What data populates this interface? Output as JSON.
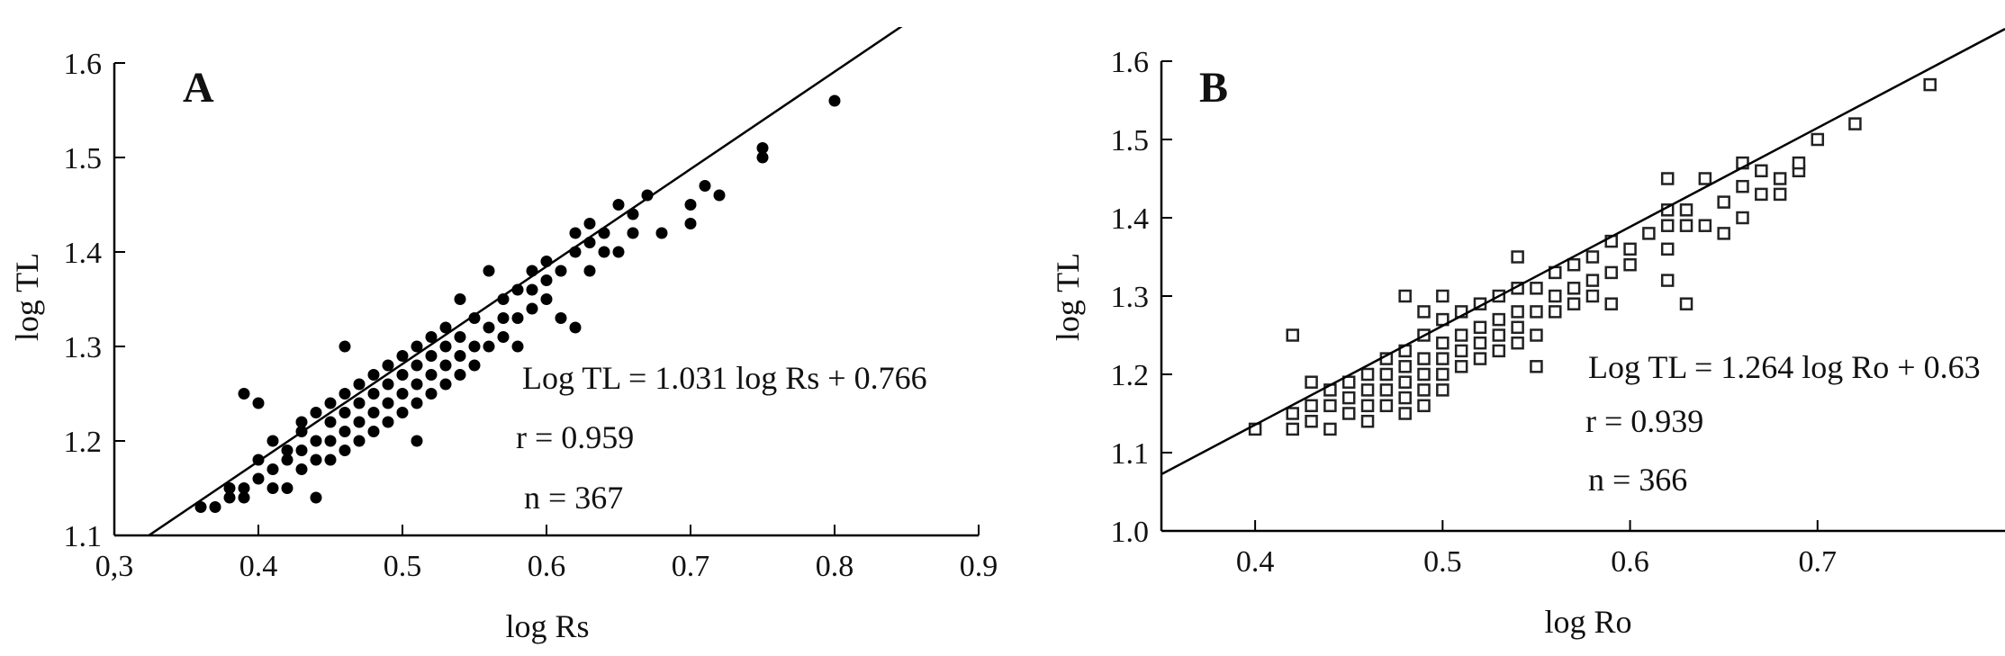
{
  "chart_data": [
    {
      "type": "scatter",
      "panel": "A",
      "xlabel": "log Rs",
      "ylabel": "log TL",
      "xlim": [
        0.3,
        0.9
      ],
      "ylim": [
        1.1,
        1.6
      ],
      "x_ticks": [
        "0,3",
        "0.4",
        "0.5",
        "0.6",
        "0.7",
        "0.8",
        "0.9"
      ],
      "y_ticks": [
        "1.1",
        "1.2",
        "1.3",
        "1.4",
        "1.5",
        "1.6"
      ],
      "marker": "filled-circle",
      "regression": {
        "slope": 1.031,
        "intercept": 0.766
      },
      "annotations": [
        "Log TL = 1.031 log Rs + 0.766",
        "r = 0.959",
        "n = 367"
      ],
      "points": [
        [
          0.36,
          1.13
        ],
        [
          0.37,
          1.13
        ],
        [
          0.38,
          1.14
        ],
        [
          0.38,
          1.15
        ],
        [
          0.39,
          1.15
        ],
        [
          0.39,
          1.14
        ],
        [
          0.4,
          1.16
        ],
        [
          0.4,
          1.18
        ],
        [
          0.39,
          1.25
        ],
        [
          0.4,
          1.24
        ],
        [
          0.41,
          1.15
        ],
        [
          0.41,
          1.17
        ],
        [
          0.41,
          1.2
        ],
        [
          0.42,
          1.15
        ],
        [
          0.42,
          1.18
        ],
        [
          0.42,
          1.19
        ],
        [
          0.43,
          1.17
        ],
        [
          0.43,
          1.19
        ],
        [
          0.43,
          1.21
        ],
        [
          0.43,
          1.22
        ],
        [
          0.44,
          1.14
        ],
        [
          0.44,
          1.18
        ],
        [
          0.44,
          1.2
        ],
        [
          0.44,
          1.23
        ],
        [
          0.45,
          1.18
        ],
        [
          0.45,
          1.2
        ],
        [
          0.45,
          1.22
        ],
        [
          0.45,
          1.24
        ],
        [
          0.46,
          1.19
        ],
        [
          0.46,
          1.21
        ],
        [
          0.46,
          1.23
        ],
        [
          0.46,
          1.25
        ],
        [
          0.46,
          1.3
        ],
        [
          0.47,
          1.2
        ],
        [
          0.47,
          1.22
        ],
        [
          0.47,
          1.24
        ],
        [
          0.47,
          1.26
        ],
        [
          0.48,
          1.21
        ],
        [
          0.48,
          1.23
        ],
        [
          0.48,
          1.25
        ],
        [
          0.48,
          1.27
        ],
        [
          0.49,
          1.22
        ],
        [
          0.49,
          1.24
        ],
        [
          0.49,
          1.26
        ],
        [
          0.49,
          1.28
        ],
        [
          0.5,
          1.23
        ],
        [
          0.5,
          1.25
        ],
        [
          0.5,
          1.27
        ],
        [
          0.5,
          1.29
        ],
        [
          0.51,
          1.24
        ],
        [
          0.51,
          1.26
        ],
        [
          0.51,
          1.28
        ],
        [
          0.51,
          1.3
        ],
        [
          0.51,
          1.2
        ],
        [
          0.52,
          1.25
        ],
        [
          0.52,
          1.27
        ],
        [
          0.52,
          1.29
        ],
        [
          0.52,
          1.31
        ],
        [
          0.53,
          1.26
        ],
        [
          0.53,
          1.28
        ],
        [
          0.53,
          1.3
        ],
        [
          0.53,
          1.32
        ],
        [
          0.54,
          1.27
        ],
        [
          0.54,
          1.29
        ],
        [
          0.54,
          1.31
        ],
        [
          0.54,
          1.35
        ],
        [
          0.55,
          1.28
        ],
        [
          0.55,
          1.3
        ],
        [
          0.55,
          1.33
        ],
        [
          0.56,
          1.3
        ],
        [
          0.56,
          1.32
        ],
        [
          0.56,
          1.38
        ],
        [
          0.57,
          1.31
        ],
        [
          0.57,
          1.33
        ],
        [
          0.57,
          1.35
        ],
        [
          0.58,
          1.3
        ],
        [
          0.58,
          1.33
        ],
        [
          0.58,
          1.36
        ],
        [
          0.59,
          1.34
        ],
        [
          0.59,
          1.36
        ],
        [
          0.59,
          1.38
        ],
        [
          0.6,
          1.35
        ],
        [
          0.6,
          1.37
        ],
        [
          0.6,
          1.39
        ],
        [
          0.61,
          1.33
        ],
        [
          0.61,
          1.38
        ],
        [
          0.62,
          1.32
        ],
        [
          0.62,
          1.4
        ],
        [
          0.62,
          1.42
        ],
        [
          0.63,
          1.38
        ],
        [
          0.63,
          1.41
        ],
        [
          0.63,
          1.43
        ],
        [
          0.64,
          1.4
        ],
        [
          0.64,
          1.42
        ],
        [
          0.65,
          1.4
        ],
        [
          0.65,
          1.45
        ],
        [
          0.66,
          1.42
        ],
        [
          0.66,
          1.44
        ],
        [
          0.67,
          1.46
        ],
        [
          0.68,
          1.42
        ],
        [
          0.7,
          1.43
        ],
        [
          0.7,
          1.45
        ],
        [
          0.71,
          1.47
        ],
        [
          0.72,
          1.46
        ],
        [
          0.75,
          1.5
        ],
        [
          0.75,
          1.51
        ],
        [
          0.8,
          1.56
        ]
      ]
    },
    {
      "type": "scatter",
      "panel": "B",
      "xlabel": "log Ro",
      "ylabel": "log TL",
      "xlim": [
        0.35,
        0.8
      ],
      "ylim": [
        1.0,
        1.6
      ],
      "x_ticks": [
        "0.4",
        "0.5",
        "0.6",
        "0.7"
      ],
      "y_ticks": [
        "1.0",
        "1.1",
        "1.2",
        "1.3",
        "1.4",
        "1.5",
        "1.6"
      ],
      "marker": "open-square",
      "regression": {
        "slope": 1.264,
        "intercept": 0.63
      },
      "annotations": [
        "Log TL = 1.264 log Ro + 0.63",
        "r = 0.939",
        "n = 366"
      ],
      "points": [
        [
          0.4,
          1.13
        ],
        [
          0.42,
          1.25
        ],
        [
          0.42,
          1.15
        ],
        [
          0.42,
          1.13
        ],
        [
          0.43,
          1.14
        ],
        [
          0.43,
          1.16
        ],
        [
          0.43,
          1.19
        ],
        [
          0.44,
          1.13
        ],
        [
          0.44,
          1.16
        ],
        [
          0.44,
          1.18
        ],
        [
          0.45,
          1.15
        ],
        [
          0.45,
          1.17
        ],
        [
          0.45,
          1.19
        ],
        [
          0.46,
          1.14
        ],
        [
          0.46,
          1.16
        ],
        [
          0.46,
          1.18
        ],
        [
          0.46,
          1.2
        ],
        [
          0.47,
          1.16
        ],
        [
          0.47,
          1.18
        ],
        [
          0.47,
          1.2
        ],
        [
          0.47,
          1.22
        ],
        [
          0.48,
          1.15
        ],
        [
          0.48,
          1.17
        ],
        [
          0.48,
          1.19
        ],
        [
          0.48,
          1.21
        ],
        [
          0.48,
          1.23
        ],
        [
          0.48,
          1.3
        ],
        [
          0.49,
          1.16
        ],
        [
          0.49,
          1.18
        ],
        [
          0.49,
          1.2
        ],
        [
          0.49,
          1.22
        ],
        [
          0.49,
          1.25
        ],
        [
          0.49,
          1.28
        ],
        [
          0.5,
          1.18
        ],
        [
          0.5,
          1.2
        ],
        [
          0.5,
          1.22
        ],
        [
          0.5,
          1.24
        ],
        [
          0.5,
          1.27
        ],
        [
          0.5,
          1.3
        ],
        [
          0.51,
          1.21
        ],
        [
          0.51,
          1.23
        ],
        [
          0.51,
          1.25
        ],
        [
          0.51,
          1.28
        ],
        [
          0.52,
          1.22
        ],
        [
          0.52,
          1.24
        ],
        [
          0.52,
          1.26
        ],
        [
          0.52,
          1.29
        ],
        [
          0.53,
          1.23
        ],
        [
          0.53,
          1.25
        ],
        [
          0.53,
          1.27
        ],
        [
          0.53,
          1.3
        ],
        [
          0.54,
          1.24
        ],
        [
          0.54,
          1.26
        ],
        [
          0.54,
          1.28
        ],
        [
          0.54,
          1.31
        ],
        [
          0.54,
          1.35
        ],
        [
          0.55,
          1.21
        ],
        [
          0.55,
          1.25
        ],
        [
          0.55,
          1.28
        ],
        [
          0.55,
          1.31
        ],
        [
          0.56,
          1.28
        ],
        [
          0.56,
          1.3
        ],
        [
          0.56,
          1.33
        ],
        [
          0.57,
          1.29
        ],
        [
          0.57,
          1.31
        ],
        [
          0.57,
          1.34
        ],
        [
          0.58,
          1.3
        ],
        [
          0.58,
          1.32
        ],
        [
          0.58,
          1.35
        ],
        [
          0.59,
          1.29
        ],
        [
          0.59,
          1.33
        ],
        [
          0.59,
          1.37
        ],
        [
          0.6,
          1.34
        ],
        [
          0.6,
          1.36
        ],
        [
          0.61,
          1.38
        ],
        [
          0.62,
          1.36
        ],
        [
          0.62,
          1.39
        ],
        [
          0.62,
          1.41
        ],
        [
          0.62,
          1.32
        ],
        [
          0.62,
          1.45
        ],
        [
          0.63,
          1.29
        ],
        [
          0.63,
          1.39
        ],
        [
          0.63,
          1.41
        ],
        [
          0.64,
          1.39
        ],
        [
          0.64,
          1.45
        ],
        [
          0.65,
          1.38
        ],
        [
          0.65,
          1.42
        ],
        [
          0.66,
          1.4
        ],
        [
          0.66,
          1.44
        ],
        [
          0.66,
          1.47
        ],
        [
          0.67,
          1.43
        ],
        [
          0.67,
          1.46
        ],
        [
          0.68,
          1.43
        ],
        [
          0.68,
          1.45
        ],
        [
          0.69,
          1.46
        ],
        [
          0.69,
          1.47
        ],
        [
          0.7,
          1.5
        ],
        [
          0.72,
          1.52
        ],
        [
          0.76,
          1.57
        ]
      ]
    }
  ]
}
